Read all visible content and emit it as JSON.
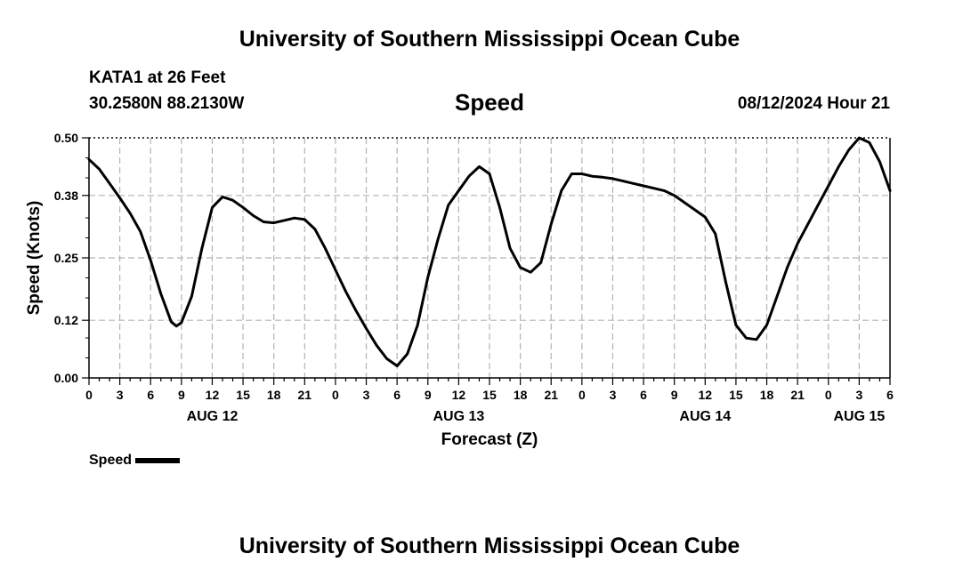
{
  "header": {
    "title": "University of Southern Mississippi Ocean Cube",
    "station": "KATA1 at 26 Feet",
    "coordinates": "30.2580N  88.2130W",
    "subtitle": "Speed",
    "timestamp": "08/12/2024 Hour 21"
  },
  "footer": {
    "title": "University of Southern Mississippi Ocean Cube"
  },
  "chart_data": {
    "type": "line",
    "title": "Speed",
    "xlabel": "Forecast (Z)",
    "ylabel": "Speed (Knots)",
    "ylim": [
      0,
      0.5
    ],
    "xlim_hours": [
      0,
      78
    ],
    "y_ticks": [
      "0.00",
      "0.12",
      "0.25",
      "0.38",
      "0.50"
    ],
    "x_tick_labels": [
      "0",
      "3",
      "6",
      "9",
      "12",
      "15",
      "18",
      "21",
      "0",
      "3",
      "6",
      "9",
      "12",
      "15",
      "18",
      "21",
      "0",
      "3",
      "6",
      "9",
      "12",
      "15",
      "18",
      "21",
      "0",
      "3",
      "6"
    ],
    "date_labels": [
      {
        "label": "AUG 12",
        "at_hour": 12
      },
      {
        "label": "AUG 13",
        "at_hour": 36
      },
      {
        "label": "AUG 14",
        "at_hour": 60
      },
      {
        "label": "AUG 15",
        "at_hour": 75
      }
    ],
    "grid": true,
    "legend": "bottom-left",
    "series": [
      {
        "name": "Speed",
        "color": "#000000",
        "x_hours": [
          0,
          1,
          2,
          3,
          4,
          5,
          6,
          7,
          8,
          8.5,
          9,
          10,
          11,
          12,
          13,
          14,
          15,
          16,
          17,
          18,
          19,
          20,
          21,
          22,
          23,
          24,
          25,
          26,
          27,
          28,
          29,
          30,
          31,
          32,
          33,
          34,
          35,
          36,
          37,
          38,
          39,
          40,
          41,
          42,
          43,
          44,
          45,
          46,
          47,
          48,
          49,
          50,
          51,
          52,
          53,
          54,
          55,
          56,
          57,
          58,
          59,
          60,
          61,
          62,
          63,
          64,
          65,
          66,
          67,
          68,
          69,
          70,
          71,
          72,
          73,
          74,
          75,
          76,
          77,
          78
        ],
        "values": [
          0.455,
          0.435,
          0.405,
          0.375,
          0.343,
          0.305,
          0.245,
          0.175,
          0.117,
          0.108,
          0.115,
          0.17,
          0.27,
          0.355,
          0.377,
          0.37,
          0.355,
          0.338,
          0.325,
          0.323,
          0.328,
          0.333,
          0.33,
          0.31,
          0.27,
          0.225,
          0.18,
          0.14,
          0.103,
          0.068,
          0.04,
          0.025,
          0.05,
          0.11,
          0.21,
          0.29,
          0.36,
          0.39,
          0.42,
          0.44,
          0.425,
          0.355,
          0.27,
          0.23,
          0.22,
          0.24,
          0.32,
          0.39,
          0.425,
          0.425,
          0.42,
          0.418,
          0.415,
          0.41,
          0.405,
          0.4,
          0.395,
          0.39,
          0.38,
          0.365,
          0.35,
          0.335,
          0.3,
          0.2,
          0.11,
          0.083,
          0.08,
          0.11,
          0.17,
          0.23,
          0.28,
          0.32,
          0.36,
          0.4,
          0.44,
          0.475,
          0.5,
          0.49,
          0.45,
          0.39
        ]
      }
    ]
  }
}
